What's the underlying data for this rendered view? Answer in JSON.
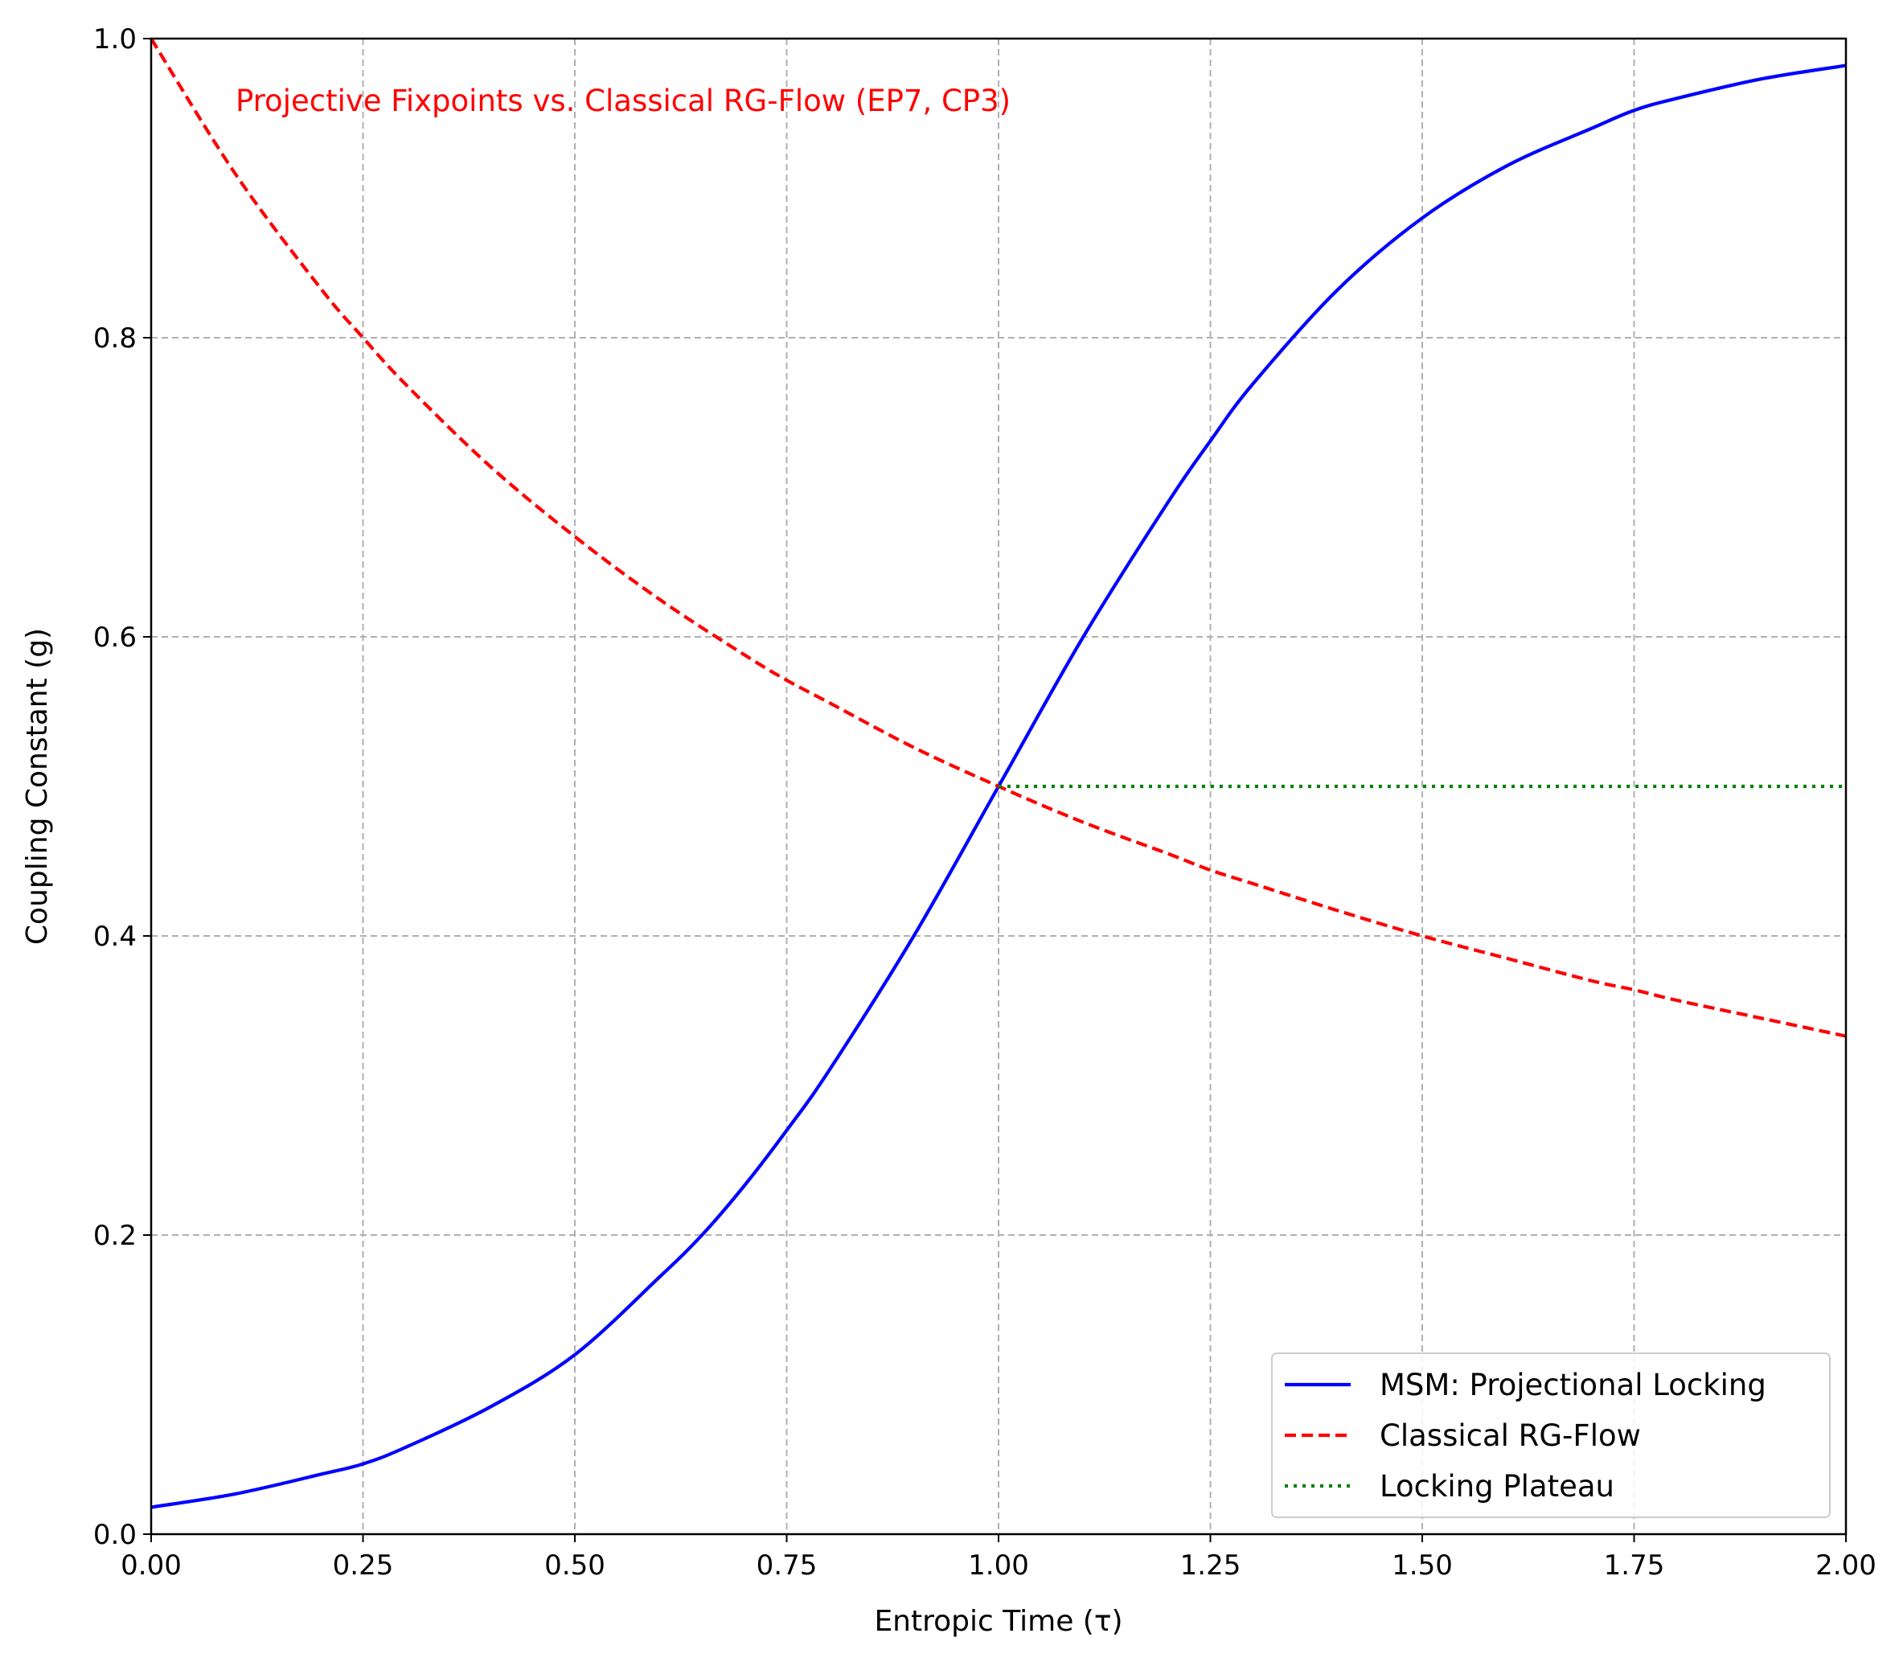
{
  "chart_data": {
    "type": "line",
    "title": "",
    "annotation": {
      "text": "Projective Fixpoints vs. Classical RG-Flow (EP7, CP3)",
      "color": "#ff0000"
    },
    "xlabel": "Entropic Time (τ)",
    "ylabel": "Coupling Constant (g)",
    "xlim": [
      0.0,
      2.0
    ],
    "ylim": [
      0.0,
      1.0
    ],
    "x_ticks": [
      "0.00",
      "0.25",
      "0.50",
      "0.75",
      "1.00",
      "1.25",
      "1.50",
      "1.75",
      "2.00"
    ],
    "y_ticks": [
      "0.0",
      "0.2",
      "0.4",
      "0.6",
      "0.8",
      "1.0"
    ],
    "grid": true,
    "legend_position": "bottom-right",
    "series": [
      {
        "name": "MSM: Projectional Locking",
        "color": "#0000ff",
        "style": "solid",
        "x": [
          0.0,
          0.1,
          0.2,
          0.25,
          0.3,
          0.4,
          0.5,
          0.6,
          0.65,
          0.7,
          0.75,
          0.8,
          0.9,
          1.0,
          1.1,
          1.2,
          1.25,
          1.3,
          1.4,
          1.5,
          1.6,
          1.7,
          1.75,
          1.8,
          1.9,
          2.0
        ],
        "y": [
          0.018,
          0.027,
          0.04,
          0.047,
          0.058,
          0.085,
          0.12,
          0.172,
          0.2,
          0.233,
          0.27,
          0.31,
          0.4,
          0.5,
          0.6,
          0.69,
          0.731,
          0.769,
          0.832,
          0.88,
          0.915,
          0.94,
          0.952,
          0.96,
          0.973,
          0.982
        ]
      },
      {
        "name": "Classical RG-Flow",
        "color": "#ff0000",
        "style": "dashed",
        "x": [
          0.0,
          0.1,
          0.2,
          0.25,
          0.3,
          0.4,
          0.5,
          0.6,
          0.7,
          0.75,
          0.8,
          0.9,
          1.0,
          1.1,
          1.2,
          1.25,
          1.3,
          1.4,
          1.5,
          1.6,
          1.7,
          1.75,
          1.8,
          1.9,
          2.0
        ],
        "y": [
          1.0,
          0.909,
          0.833,
          0.8,
          0.769,
          0.714,
          0.667,
          0.625,
          0.588,
          0.571,
          0.556,
          0.526,
          0.5,
          0.476,
          0.455,
          0.444,
          0.435,
          0.417,
          0.4,
          0.385,
          0.37,
          0.364,
          0.357,
          0.345,
          0.333
        ]
      },
      {
        "name": "Locking Plateau",
        "color": "#008000",
        "style": "dotted",
        "x": [
          1.0,
          2.0
        ],
        "y": [
          0.5,
          0.5
        ]
      }
    ]
  }
}
